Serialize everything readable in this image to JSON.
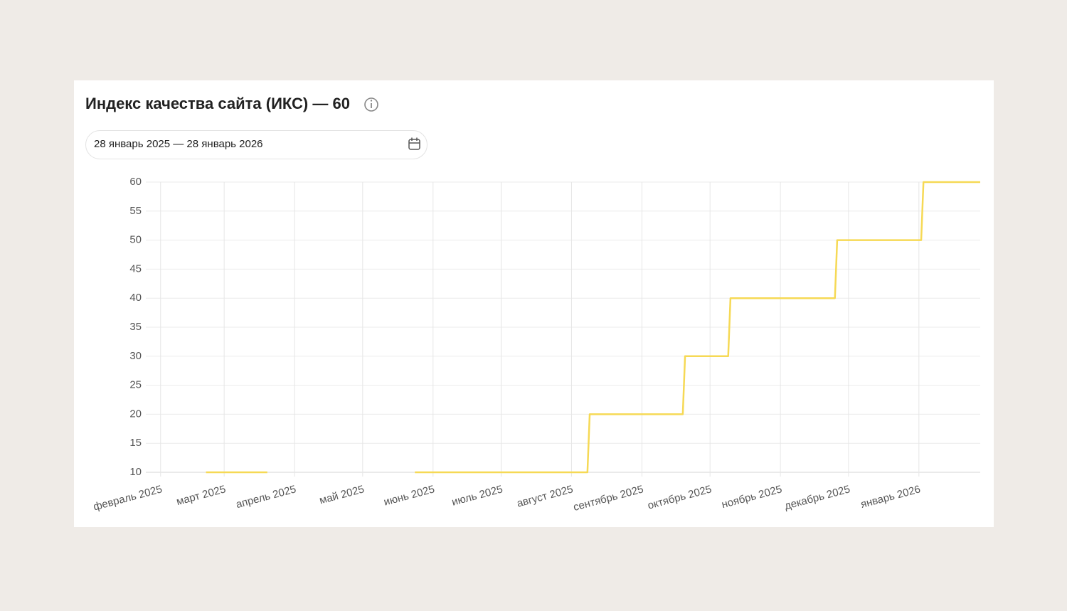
{
  "header": {
    "title": "Индекс качества сайта (ИКС) — 60",
    "date_range": "28 январь 2025 — 28 январь 2026"
  },
  "chart_data": {
    "type": "line",
    "step": true,
    "x": [
      20,
      47,
      null,
      112,
      188,
      189,
      230,
      231,
      250,
      251,
      297,
      298,
      335,
      336,
      361
    ],
    "series": [
      {
        "color": "#f6d955",
        "values": [
          10,
          10,
          null,
          10,
          10,
          20,
          20,
          30,
          30,
          40,
          40,
          50,
          50,
          60,
          60
        ]
      }
    ],
    "xlim": [
      -4,
      361
    ],
    "xticks": [
      {
        "value": 0,
        "label": "февраль 2025"
      },
      {
        "value": 28,
        "label": "март 2025"
      },
      {
        "value": 59,
        "label": "апрель 2025"
      },
      {
        "value": 89,
        "label": "май 2025"
      },
      {
        "value": 120,
        "label": "июнь 2025"
      },
      {
        "value": 150,
        "label": "июль 2025"
      },
      {
        "value": 181,
        "label": "август 2025"
      },
      {
        "value": 212,
        "label": "сентябрь 2025"
      },
      {
        "value": 242,
        "label": "октябрь 2025"
      },
      {
        "value": 273,
        "label": "ноябрь 2025"
      },
      {
        "value": 303,
        "label": "декабрь 2025"
      },
      {
        "value": 334,
        "label": "январь 2026"
      }
    ],
    "ylim": [
      10,
      60
    ],
    "yticks": [
      10,
      15,
      20,
      25,
      30,
      35,
      40,
      45,
      50,
      55,
      60
    ],
    "grid": true
  }
}
